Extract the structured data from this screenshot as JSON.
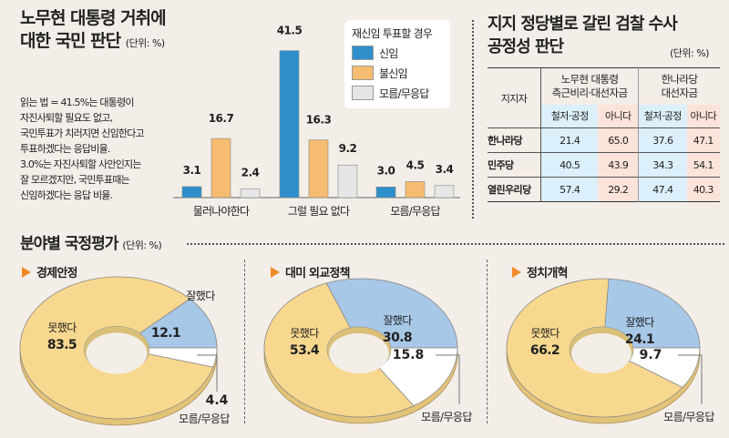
{
  "bar_section": {
    "title_line1": "노무현 대통령 거취에",
    "title_line2": "대한 국민 판단",
    "unit": "(단위: %)",
    "note_lines": [
      "읽는 법 = 41.5%는 대통령이",
      "자진사퇴할 필요도 없고,",
      "국민투표가 치러지면 신임한다고",
      "투표하겠다는 응답비율.",
      "3.0%는 자진사퇴할 사안인지는",
      "잘 모르겠지만, 국민투표때는",
      "신임하겠다는 응답 비율."
    ],
    "legend_title": "재신임 투표할 경우"
  },
  "table_section": {
    "title_line1": "지지 정당별로 갈린 검찰 수사",
    "title_line2": "공정성 판단",
    "unit": "(단위: %)",
    "corner_header": "지지자",
    "group_headers": [
      {
        "line1": "노무현 대통령",
        "line2": "측근비리·대선자금"
      },
      {
        "line1": "한나라당",
        "line2": "대선자금"
      }
    ],
    "sub_headers": [
      "철저·공정",
      "아니다",
      "철저·공정",
      "아니다"
    ],
    "rows": [
      {
        "party": "한나라당",
        "values": [
          "21.4",
          "65.0",
          "37.6",
          "47.1"
        ]
      },
      {
        "party": "민주당",
        "values": [
          "40.5",
          "43.9",
          "34.3",
          "54.1"
        ]
      },
      {
        "party": "열린우리당",
        "values": [
          "57.4",
          "29.2",
          "47.4",
          "40.3"
        ]
      }
    ]
  },
  "pie_section": {
    "title": "분야별 국정평가",
    "unit": "(단위: %)"
  },
  "colors": {
    "background": "#f3eee7",
    "bar_trust": "#2e8fcb",
    "bar_distrust": "#f5bc72",
    "bar_unknown": "#e6e6e6",
    "pie_bad": "#f8d88e",
    "pie_good": "#a8c8e8",
    "pie_unknown": "#ffffff",
    "table_fair": "#dcf0fb",
    "table_not": "#fbe3da",
    "accent_triangle": "#f08a2a"
  },
  "chart_data": [
    {
      "type": "bar",
      "title": "노무현 대통령 거취에 대한 국민 판단",
      "ylabel": "%",
      "categories": [
        "물러나야한다",
        "그럴 필요 없다",
        "모름/무응답"
      ],
      "legend_title": "재신임 투표할 경우",
      "legend_position": "top-right",
      "series": [
        {
          "name": "신임",
          "values": [
            3.1,
            41.5,
            3.0
          ]
        },
        {
          "name": "불신임",
          "values": [
            16.7,
            16.3,
            4.5
          ]
        },
        {
          "name": "모름/무응답",
          "values": [
            2.4,
            9.2,
            3.4
          ]
        }
      ],
      "data_labels": [
        [
          "3.1",
          "41.5",
          "3.0"
        ],
        [
          "16.7",
          "16.3",
          "4.5"
        ],
        [
          "2.4",
          "9.2",
          "3.4"
        ]
      ],
      "ylim": [
        0,
        45
      ],
      "grid": false
    },
    {
      "type": "table",
      "title": "지지 정당별로 갈린 검찰 수사 공정성 판단",
      "columns": [
        "지지자",
        "노무현 대통령 측근비리·대선자금 철저·공정",
        "노무현 대통령 측근비리·대선자금 아니다",
        "한나라당 대선자금 철저·공정",
        "한나라당 대선자금 아니다"
      ],
      "rows": [
        [
          "한나라당",
          21.4,
          65.0,
          37.6,
          47.1
        ],
        [
          "민주당",
          40.5,
          43.9,
          34.3,
          54.1
        ],
        [
          "열린우리당",
          57.4,
          29.2,
          47.4,
          40.3
        ]
      ]
    },
    {
      "type": "pie",
      "title": "경제안정",
      "slices": [
        {
          "label": "잘했다",
          "value": 12.1,
          "display": "12.1"
        },
        {
          "label": "모름/무응답",
          "value": 4.4,
          "display": "4.4"
        },
        {
          "label": "못했다",
          "value": 83.5,
          "display": "83.5"
        }
      ]
    },
    {
      "type": "pie",
      "title": "대미 외교정책",
      "slices": [
        {
          "label": "잘했다",
          "value": 30.8,
          "display": "30.8"
        },
        {
          "label": "모름/무응답",
          "value": 15.8,
          "display": "15.8"
        },
        {
          "label": "못했다",
          "value": 53.4,
          "display": "53.4"
        }
      ]
    },
    {
      "type": "pie",
      "title": "정치개혁",
      "slices": [
        {
          "label": "잘했다",
          "value": 24.1,
          "display": "24.1"
        },
        {
          "label": "모름/무응답",
          "value": 9.7,
          "display": "9.7"
        },
        {
          "label": "못했다",
          "value": 66.2,
          "display": "66.2"
        }
      ]
    }
  ]
}
